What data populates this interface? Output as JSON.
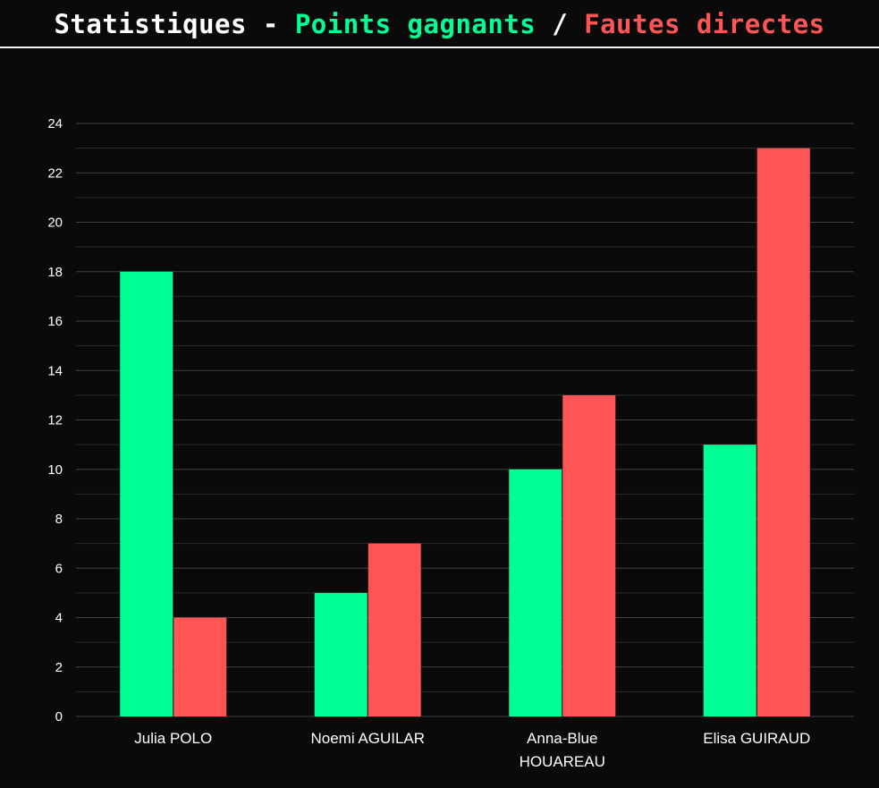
{
  "header": {
    "title_prefix": "Statistiques - ",
    "title_series1": "Points gagnants",
    "title_sep": " / ",
    "title_series2": "Fautes directes"
  },
  "colors": {
    "points_gagnants": "#00ff94",
    "fautes_directes": "#ff5555",
    "background": "#0a0a0a",
    "grid": "#3a3a3a"
  },
  "chart_data": {
    "type": "bar",
    "title": "Statistiques - Points gagnants / Fautes directes",
    "categories": [
      [
        "Julia POLO"
      ],
      [
        "Noemi AGUILAR"
      ],
      [
        "Anna-Blue",
        "HOUAREAU"
      ],
      [
        "Elisa GUIRAUD"
      ]
    ],
    "series": [
      {
        "name": "Points gagnants",
        "values": [
          18,
          5,
          10,
          11
        ]
      },
      {
        "name": "Fautes directes",
        "values": [
          4,
          7,
          13,
          23
        ]
      }
    ],
    "ylim": [
      0,
      24
    ],
    "yticks": [
      0,
      2,
      4,
      6,
      8,
      10,
      12,
      14,
      16,
      18,
      20,
      22,
      24
    ],
    "minor_grid_step": 1,
    "grid": true,
    "legend": "none"
  }
}
